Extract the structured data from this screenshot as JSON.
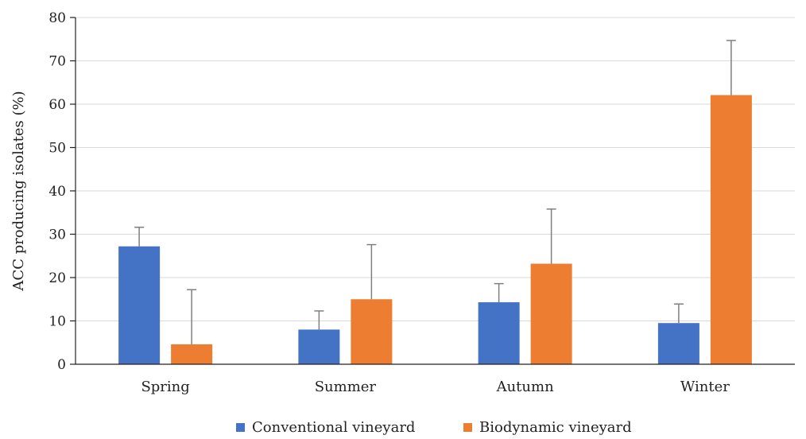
{
  "chart_data": {
    "type": "bar",
    "title": "",
    "xlabel": "",
    "ylabel": "ACC producing isolates (%)",
    "ylim": [
      0,
      80
    ],
    "yticks": [
      0,
      10,
      20,
      30,
      40,
      50,
      60,
      70,
      80
    ],
    "grid": true,
    "legend_position": "bottom",
    "categories": [
      "Spring",
      "Summer",
      "Autumn",
      "Winter"
    ],
    "series": [
      {
        "name": "Conventional vineyard",
        "color": "#4472C4",
        "values": [
          27.2,
          8.0,
          14.3,
          9.5
        ],
        "error_upper": [
          4.4,
          4.3,
          4.3,
          4.4
        ]
      },
      {
        "name": "Biodynamic vineyard",
        "color": "#ED7D31",
        "values": [
          4.6,
          15.0,
          23.2,
          62.1
        ],
        "error_upper": [
          12.6,
          12.6,
          12.6,
          12.6
        ]
      }
    ]
  }
}
